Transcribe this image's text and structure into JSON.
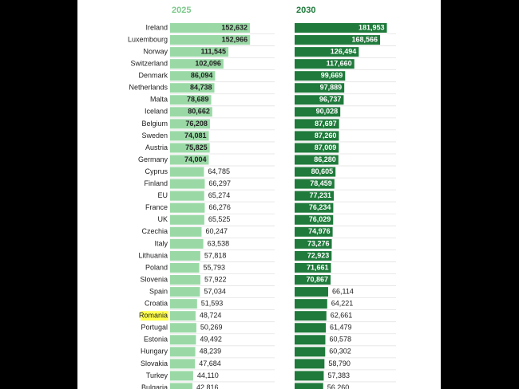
{
  "chart_data": {
    "type": "bar",
    "categories": [
      "Ireland",
      "Luxembourg",
      "Norway",
      "Switzerland",
      "Denmark",
      "Netherlands",
      "Malta",
      "Iceland",
      "Belgium",
      "Sweden",
      "Austria",
      "Germany",
      "Cyprus",
      "Finland",
      "EU",
      "France",
      "UK",
      "Czechia",
      "Italy",
      "Lithuania",
      "Poland",
      "Slovenia",
      "Spain",
      "Croatia",
      "Romania",
      "Portugal",
      "Estonia",
      "Hungary",
      "Slovakia",
      "Turkey",
      "Bulgaria"
    ],
    "series": [
      {
        "name": "2025",
        "color": "#9ad9a6",
        "header_color": "#7cc98b",
        "values": [
          152632,
          152966,
          111545,
          102096,
          86094,
          84738,
          78689,
          80662,
          76208,
          74081,
          75825,
          74004,
          64785,
          66297,
          65274,
          66276,
          65525,
          60247,
          63538,
          57818,
          55793,
          57922,
          57034,
          51593,
          48724,
          50269,
          49492,
          48239,
          47684,
          44110,
          42816
        ],
        "value_labels": [
          "152,632",
          "152,966",
          "111,545",
          "102,096",
          "86,094",
          "84,738",
          "78,689",
          "80,662",
          "76,208",
          "74,081",
          "75,825",
          "74,004",
          "64,785",
          "66,297",
          "65,274",
          "66,276",
          "65,525",
          "60,247",
          "63,538",
          "57,818",
          "55,793",
          "57,922",
          "57,034",
          "51,593",
          "48,724",
          "50,269",
          "49,492",
          "48,239",
          "47,684",
          "44,110",
          "42,816"
        ]
      },
      {
        "name": "2030",
        "color": "#1f7a3b",
        "header_color": "#1f7a3b",
        "values": [
          181953,
          168566,
          126494,
          117660,
          99669,
          97889,
          96737,
          90028,
          87697,
          87260,
          87009,
          86280,
          80605,
          78459,
          77231,
          76234,
          76029,
          74976,
          73276,
          72923,
          71661,
          70867,
          66114,
          64221,
          62661,
          61479,
          60578,
          60302,
          58790,
          57383,
          56260
        ],
        "value_labels": [
          "181,953",
          "168,566",
          "126,494",
          "117,660",
          "99,669",
          "97,889",
          "96,737",
          "90,028",
          "87,697",
          "87,260",
          "87,009",
          "86,280",
          "80,605",
          "78,459",
          "77,231",
          "76,234",
          "76,029",
          "74,976",
          "73,276",
          "72,923",
          "71,661",
          "70,867",
          "66,114",
          "64,221",
          "62,661",
          "61,479",
          "60,578",
          "60,302",
          "58,790",
          "57,383",
          "56,260"
        ]
      }
    ],
    "xlim": [
      0,
      200000
    ],
    "highlight_category": "Romania",
    "highlight_color": "#ffff4d"
  }
}
